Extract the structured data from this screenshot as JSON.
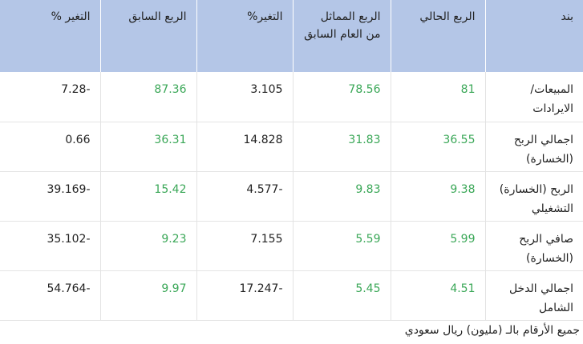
{
  "table": {
    "headers": [
      "بند",
      "الربع الحالي",
      "الربع المماثل من العام السابق",
      "التغير%",
      "الربع السابق",
      "التغير %"
    ],
    "rows": [
      [
        "المبيعات/ الايرادات",
        "81",
        "78.56",
        "3.105",
        "87.36",
        "7.28-"
      ],
      [
        "اجمالي الربح (الخسارة)",
        "36.55",
        "31.83",
        "14.828",
        "36.31",
        "0.66"
      ],
      [
        "الربح (الخسارة) التشغيلي",
        "9.38",
        "9.83",
        "4.577-",
        "15.42",
        "39.169-"
      ],
      [
        "صافي الربح (الخسارة)",
        "5.99",
        "5.59",
        "7.155",
        "9.23",
        "35.102-"
      ],
      [
        "اجمالي الدخل الشامل",
        "4.51",
        "5.45",
        "17.247-",
        "9.97",
        "54.764-"
      ]
    ]
  },
  "footer": "جميع الأرقام بالـ (مليون) ريال سعودي"
}
